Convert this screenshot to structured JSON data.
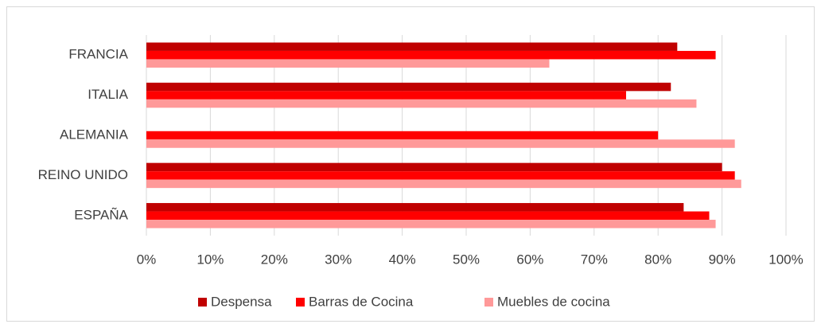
{
  "chart_data": {
    "type": "bar",
    "orientation": "horizontal",
    "categories": [
      "FRANCIA",
      "ITALIA",
      "ALEMANIA",
      "REINO UNIDO",
      "ESPAÑA"
    ],
    "series": [
      {
        "name": "Despensa",
        "color": "#c00000",
        "values": [
          83,
          82,
          null,
          90,
          84
        ]
      },
      {
        "name": "Barras de Cocina",
        "color": "#ff0000",
        "values": [
          89,
          75,
          80,
          92,
          88
        ]
      },
      {
        "name": "Muebles de cocina",
        "color": "#ff9999",
        "values": [
          63,
          86,
          92,
          93,
          89
        ]
      }
    ],
    "xlim": [
      0,
      100
    ],
    "xticks": [
      {
        "value": 0,
        "label": "0%"
      },
      {
        "value": 10,
        "label": "10%"
      },
      {
        "value": 20,
        "label": "20%"
      },
      {
        "value": 30,
        "label": "30%"
      },
      {
        "value": 40,
        "label": "40%"
      },
      {
        "value": 50,
        "label": "50%"
      },
      {
        "value": 60,
        "label": "60%"
      },
      {
        "value": 70,
        "label": "70%"
      },
      {
        "value": 80,
        "label": "80%"
      },
      {
        "value": 90,
        "label": "90%"
      },
      {
        "value": 100,
        "label": "100%"
      }
    ],
    "grid": true,
    "legend": "bottom"
  }
}
